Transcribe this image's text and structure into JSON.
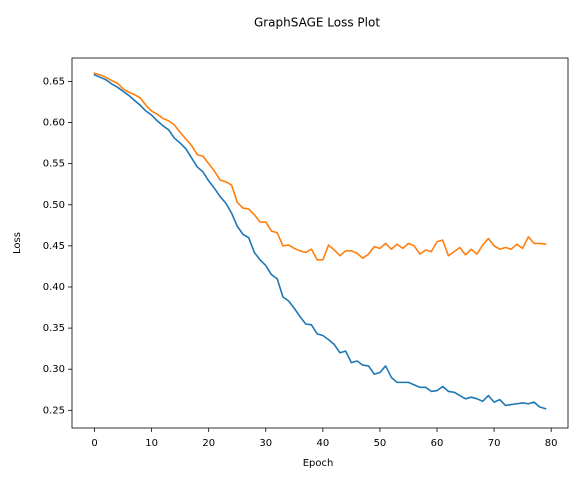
{
  "chart_data": {
    "type": "line",
    "title": "GraphSAGE Loss Plot",
    "xlabel": "Epoch",
    "ylabel": "Loss",
    "xlim": [
      -3.95,
      82.95
    ],
    "ylim": [
      0.2285,
      0.6785
    ],
    "xticks": [
      0,
      10,
      20,
      30,
      40,
      50,
      60,
      70,
      80
    ],
    "yticks": [
      0.25,
      0.3,
      0.35,
      0.4,
      0.45,
      0.5,
      0.55,
      0.6,
      0.65
    ],
    "grid": false,
    "series": [
      {
        "color": "#1f77b4",
        "x": [
          0,
          1,
          2,
          3,
          4,
          5,
          6,
          7,
          8,
          9,
          10,
          11,
          12,
          13,
          14,
          15,
          16,
          17,
          18,
          19,
          20,
          21,
          22,
          23,
          24,
          25,
          26,
          27,
          28,
          29,
          30,
          31,
          32,
          33,
          34,
          35,
          36,
          37,
          38,
          39,
          40,
          41,
          42,
          43,
          44,
          45,
          46,
          47,
          48,
          49,
          50,
          51,
          52,
          53,
          54,
          55,
          56,
          57,
          58,
          59,
          60,
          61,
          62,
          63,
          64,
          65,
          66,
          67,
          68,
          69,
          70,
          71,
          72,
          73,
          74,
          75,
          76,
          77,
          78,
          79
        ],
        "y": [
          0.658,
          0.655,
          0.652,
          0.647,
          0.643,
          0.638,
          0.633,
          0.627,
          0.621,
          0.614,
          0.609,
          0.602,
          0.596,
          0.591,
          0.581,
          0.575,
          0.568,
          0.557,
          0.546,
          0.54,
          0.529,
          0.52,
          0.51,
          0.502,
          0.49,
          0.474,
          0.464,
          0.46,
          0.442,
          0.433,
          0.426,
          0.415,
          0.41,
          0.388,
          0.383,
          0.374,
          0.364,
          0.355,
          0.354,
          0.343,
          0.341,
          0.336,
          0.33,
          0.32,
          0.322,
          0.308,
          0.31,
          0.305,
          0.304,
          0.294,
          0.296,
          0.304,
          0.29,
          0.284,
          0.284,
          0.284,
          0.281,
          0.278,
          0.278,
          0.273,
          0.274,
          0.279,
          0.273,
          0.272,
          0.268,
          0.264,
          0.266,
          0.264,
          0.261,
          0.268,
          0.26,
          0.263,
          0.256,
          0.257,
          0.258,
          0.259,
          0.258,
          0.26,
          0.254,
          0.252
        ]
      },
      {
        "color": "#ff7f0e",
        "x": [
          0,
          1,
          2,
          3,
          4,
          5,
          6,
          7,
          8,
          9,
          10,
          11,
          12,
          13,
          14,
          15,
          16,
          17,
          18,
          19,
          20,
          21,
          22,
          23,
          24,
          25,
          26,
          27,
          28,
          29,
          30,
          31,
          32,
          33,
          34,
          35,
          36,
          37,
          38,
          39,
          40,
          41,
          42,
          43,
          44,
          45,
          46,
          47,
          48,
          49,
          50,
          51,
          52,
          53,
          54,
          55,
          56,
          57,
          58,
          59,
          60,
          61,
          62,
          63,
          64,
          65,
          66,
          67,
          68,
          69,
          70,
          71,
          72,
          73,
          74,
          75,
          76,
          77,
          78,
          79
        ],
        "y": [
          0.66,
          0.658,
          0.655,
          0.651,
          0.648,
          0.641,
          0.637,
          0.634,
          0.63,
          0.621,
          0.614,
          0.61,
          0.605,
          0.602,
          0.597,
          0.588,
          0.58,
          0.572,
          0.561,
          0.559,
          0.55,
          0.541,
          0.53,
          0.528,
          0.524,
          0.503,
          0.496,
          0.495,
          0.488,
          0.479,
          0.479,
          0.468,
          0.466,
          0.45,
          0.451,
          0.447,
          0.444,
          0.442,
          0.446,
          0.433,
          0.433,
          0.451,
          0.445,
          0.438,
          0.444,
          0.444,
          0.441,
          0.435,
          0.44,
          0.449,
          0.447,
          0.453,
          0.446,
          0.452,
          0.447,
          0.453,
          0.45,
          0.44,
          0.445,
          0.443,
          0.455,
          0.457,
          0.438,
          0.443,
          0.448,
          0.439,
          0.446,
          0.44,
          0.451,
          0.459,
          0.45,
          0.446,
          0.448,
          0.446,
          0.452,
          0.447,
          0.461,
          0.453,
          0.453,
          0.452
        ]
      }
    ]
  }
}
